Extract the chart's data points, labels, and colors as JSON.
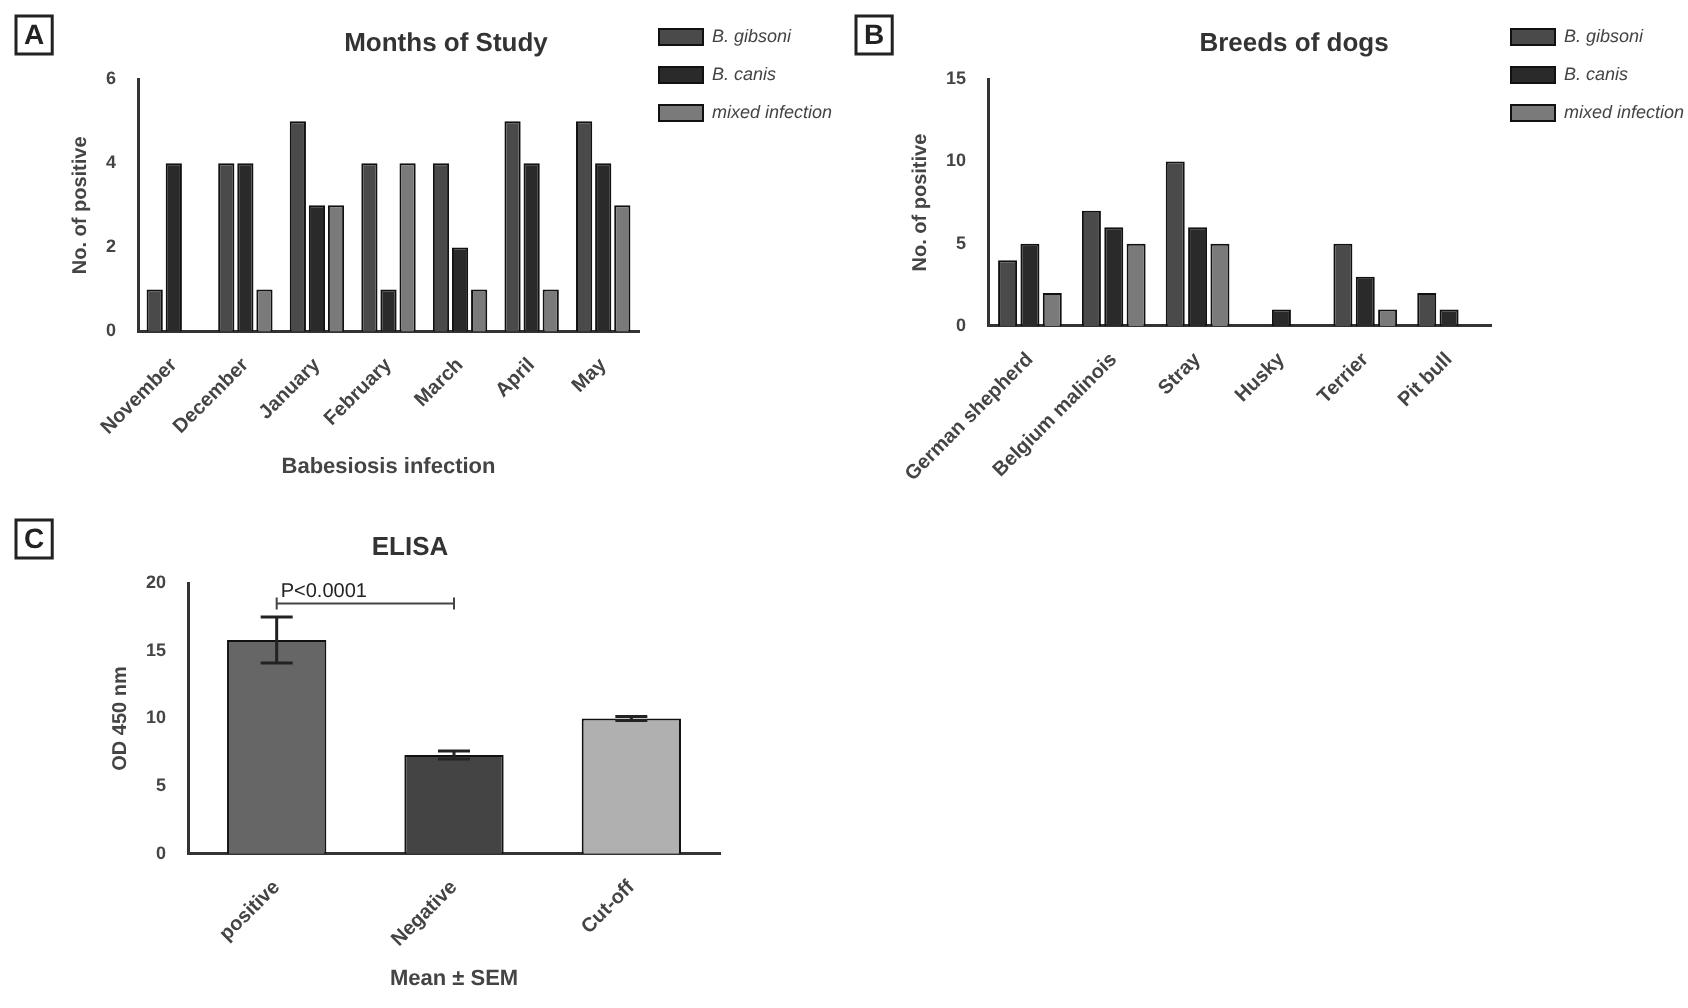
{
  "chart_data": [
    {
      "type": "bar",
      "title": "Months of Study",
      "xlabel": "Babesiosis infection",
      "ylabel": "No. of positive",
      "categories": [
        "November",
        "December",
        "January",
        "February",
        "March",
        "April",
        "May"
      ],
      "series": [
        {
          "name": "B. gibsoni",
          "color": "#4a4a4a",
          "values": [
            1,
            4,
            5,
            4,
            4,
            5,
            5
          ]
        },
        {
          "name": "B. canis",
          "color": "#2a2a2a",
          "values": [
            4,
            4,
            3,
            1,
            2,
            4,
            4
          ]
        },
        {
          "name": "mixed infection",
          "color": "#7a7a7a",
          "values": [
            0,
            1,
            3,
            4,
            1,
            1,
            3
          ]
        }
      ],
      "ylim": [
        0,
        6
      ],
      "yticks": [
        0,
        2,
        4,
        6
      ],
      "legend": "top right",
      "annotations": [
        "A"
      ]
    },
    {
      "type": "bar",
      "title": "Breeds of dogs",
      "ylabel": "No. of positive",
      "categories": [
        "German shepherd",
        "Belgium malinois",
        "Stray",
        "Husky",
        "Terrier",
        "Pit bull"
      ],
      "series": [
        {
          "name": "B. gibsoni",
          "color": "#4a4a4a",
          "values": [
            4,
            7,
            10,
            0,
            5,
            2
          ]
        },
        {
          "name": "B. canis",
          "color": "#2a2a2a",
          "values": [
            5,
            6,
            6,
            1,
            3,
            1
          ]
        },
        {
          "name": "mixed infection",
          "color": "#7a7a7a",
          "values": [
            2,
            5,
            5,
            0,
            1,
            0
          ]
        }
      ],
      "ylim": [
        0,
        15
      ],
      "yticks": [
        0,
        5,
        10,
        15
      ],
      "legend": "top right",
      "annotations": [
        "B"
      ]
    },
    {
      "type": "bar",
      "title": "ELISA",
      "xlabel": "Mean ± SEM",
      "ylabel": "OD 450 nm",
      "categories": [
        "positive",
        "Negative",
        "Cut-off"
      ],
      "values": [
        15.8,
        7.3,
        10
      ],
      "colors": [
        "#666666",
        "#444444",
        "#b0b0b0"
      ],
      "errors": [
        1.7,
        0.3,
        0.15
      ],
      "ylim": [
        0,
        20
      ],
      "yticks": [
        0,
        5,
        10,
        15,
        20
      ],
      "annotations": [
        "C",
        "P<0.0001"
      ]
    }
  ]
}
